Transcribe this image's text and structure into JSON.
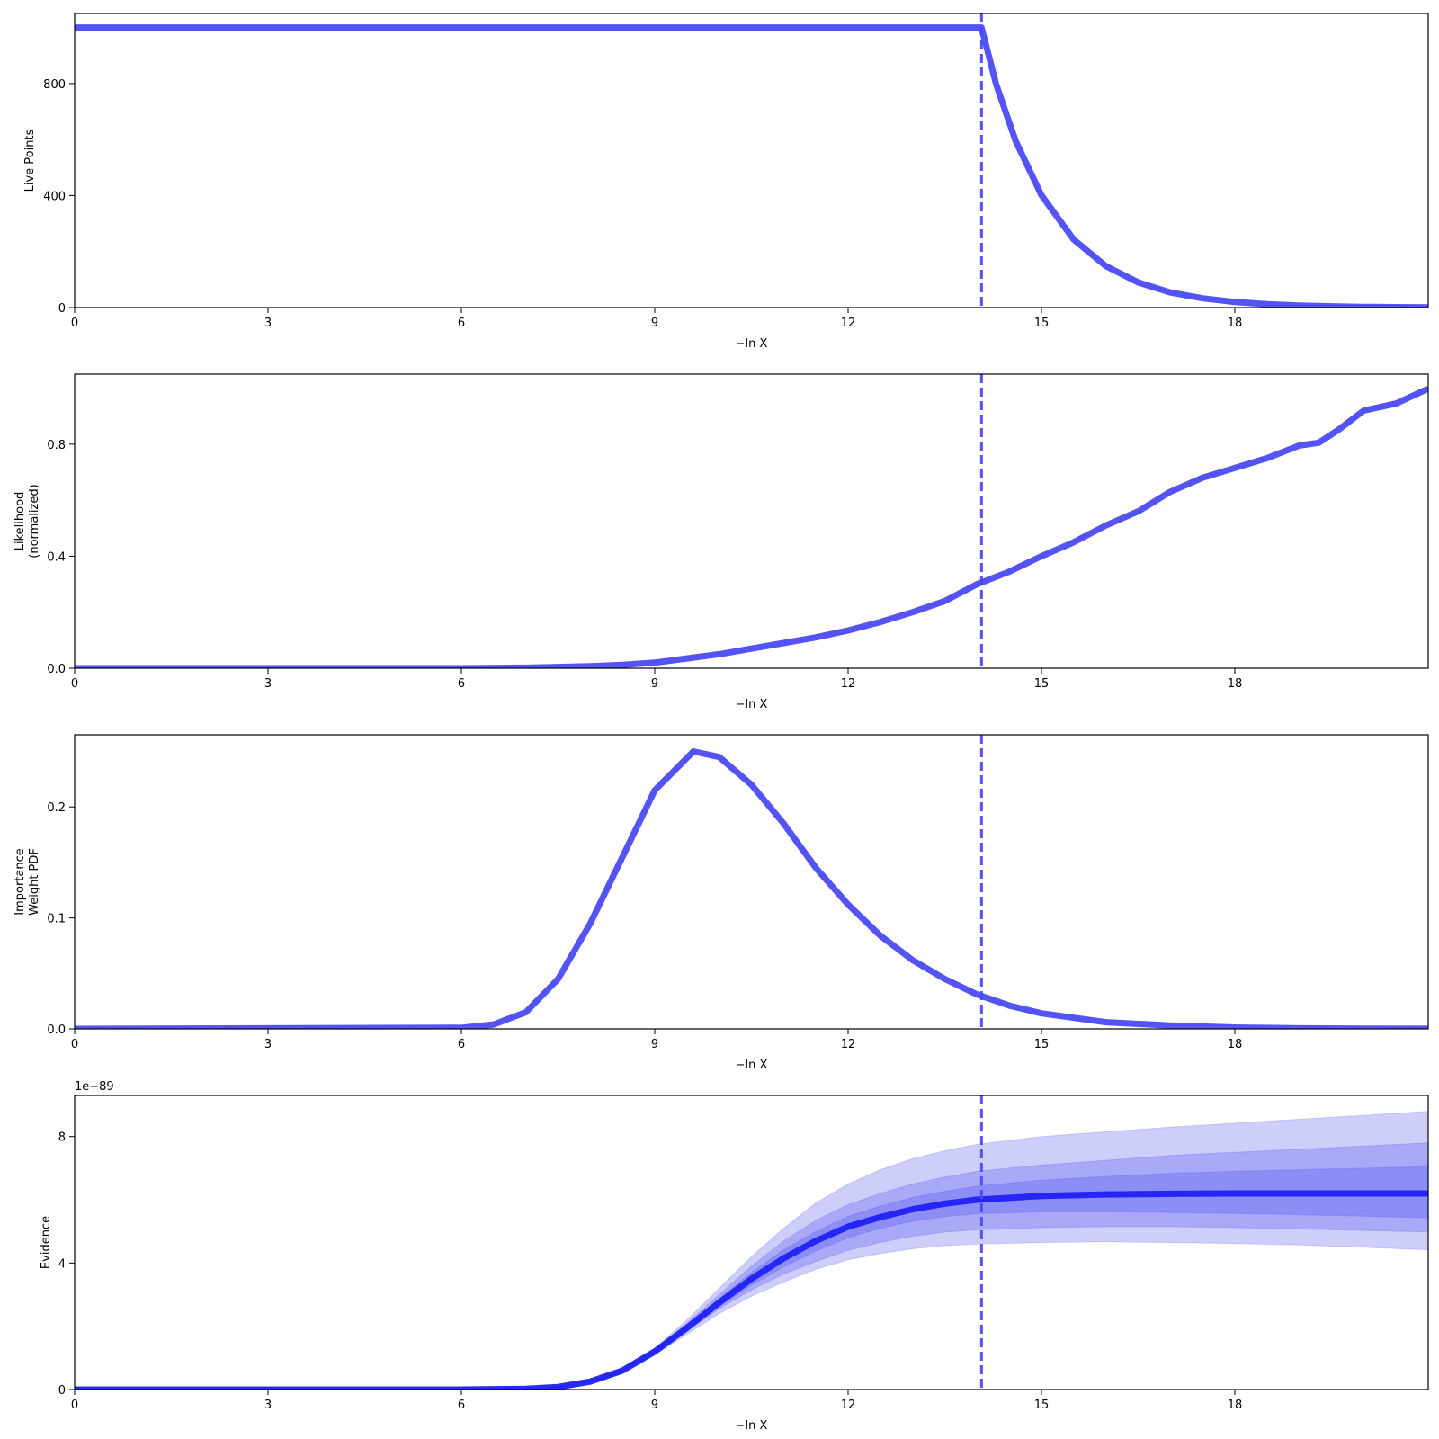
{
  "colors": {
    "line": "#4B4BF5",
    "evidence_line": "#2020F5",
    "band": "#3C3CF0"
  },
  "chart_data": [
    {
      "type": "line",
      "name": "live-points-panel",
      "xlabel": "−ln X",
      "ylabel": [
        "Live Points"
      ],
      "xlim": [
        0,
        21
      ],
      "ylim": [
        0,
        1050
      ],
      "xticks": [
        0,
        3,
        6,
        9,
        12,
        15,
        18
      ],
      "yticks": [
        0,
        400,
        800
      ],
      "vline": 14.07,
      "series": [
        {
          "x": [
            0,
            14.07,
            14.3,
            14.6,
            15.0,
            15.5,
            16.0,
            16.5,
            17.0,
            17.5,
            18.0,
            18.5,
            19.0,
            19.5,
            20.0,
            20.5,
            21.0
          ],
          "y": [
            1000,
            1000,
            795,
            595,
            401,
            243,
            148,
            90,
            54,
            33,
            20,
            12,
            7.4,
            4.5,
            2.7,
            1.6,
            1
          ]
        }
      ]
    },
    {
      "type": "line",
      "name": "likelihood-panel",
      "xlabel": "−ln X",
      "ylabel": [
        "Likelihood",
        "(normalized)"
      ],
      "xlim": [
        0,
        21
      ],
      "ylim": [
        0,
        1.05
      ],
      "xticks": [
        0,
        3,
        6,
        9,
        12,
        15,
        18
      ],
      "yticks": [
        0,
        0.4,
        0.8
      ],
      "ytick_labels": [
        "0.0",
        "0.4",
        "0.8"
      ],
      "vline": 14.07,
      "series": [
        {
          "x": [
            0,
            6,
            7,
            8,
            8.5,
            9,
            9.5,
            10,
            10.5,
            11,
            11.5,
            12,
            12.5,
            13,
            13.5,
            14,
            14.5,
            15,
            15.5,
            16,
            16.5,
            17,
            17.5,
            18,
            18.5,
            19,
            19.3,
            19.6,
            20,
            20.5,
            21
          ],
          "y": [
            0,
            0,
            0.002,
            0.007,
            0.012,
            0.02,
            0.035,
            0.05,
            0.07,
            0.09,
            0.11,
            0.135,
            0.165,
            0.2,
            0.24,
            0.3,
            0.345,
            0.4,
            0.45,
            0.51,
            0.56,
            0.63,
            0.68,
            0.715,
            0.75,
            0.795,
            0.805,
            0.85,
            0.92,
            0.945,
            0.998
          ]
        }
      ]
    },
    {
      "type": "line",
      "name": "importance-weight-panel",
      "xlabel": "−ln X",
      "ylabel": [
        "Importance",
        "Weight PDF"
      ],
      "xlim": [
        0,
        21
      ],
      "ylim": [
        0,
        0.265
      ],
      "xticks": [
        0,
        3,
        6,
        9,
        12,
        15,
        18
      ],
      "yticks": [
        0,
        0.1,
        0.2
      ],
      "ytick_labels": [
        "0.0",
        "0.1",
        "0.2"
      ],
      "vline": 14.07,
      "series": [
        {
          "x": [
            0,
            6,
            6.5,
            7,
            7.5,
            8,
            8.5,
            9,
            9.6,
            10,
            10.5,
            11,
            11.5,
            12,
            12.5,
            13,
            13.5,
            14,
            14.5,
            15,
            16,
            17,
            18,
            19,
            20,
            21
          ],
          "y": [
            0,
            0.001,
            0.004,
            0.015,
            0.045,
            0.095,
            0.155,
            0.215,
            0.25,
            0.245,
            0.22,
            0.185,
            0.145,
            0.112,
            0.084,
            0.062,
            0.045,
            0.031,
            0.021,
            0.014,
            0.006,
            0.003,
            0.0012,
            0.0005,
            0.0002,
            0.0001
          ]
        }
      ]
    },
    {
      "type": "line",
      "name": "evidence-panel",
      "xlabel": "−ln X",
      "ylabel": [
        "Evidence"
      ],
      "offset_label": "1e−89",
      "xlim": [
        0,
        21
      ],
      "ylim": [
        0,
        9.3
      ],
      "xticks": [
        0,
        3,
        6,
        9,
        12,
        15,
        18
      ],
      "yticks": [
        0,
        4,
        8
      ],
      "vline": 14.07,
      "series": [
        {
          "x": [
            0,
            6,
            7,
            7.5,
            8,
            8.5,
            9,
            9.5,
            10,
            10.5,
            11,
            11.5,
            12,
            12.5,
            13,
            13.5,
            14,
            15,
            16,
            17,
            18,
            19,
            20,
            21
          ],
          "y": [
            0,
            0,
            0.02,
            0.08,
            0.25,
            0.6,
            1.2,
            1.95,
            2.75,
            3.5,
            4.15,
            4.7,
            5.15,
            5.45,
            5.7,
            5.88,
            6.0,
            6.12,
            6.17,
            6.19,
            6.2,
            6.2,
            6.2,
            6.2
          ]
        }
      ],
      "bands": [
        {
          "sigma": 3,
          "upper": [
            0,
            0,
            0.02,
            0.09,
            0.28,
            0.66,
            1.3,
            2.2,
            3.2,
            4.2,
            5.1,
            5.9,
            6.5,
            6.95,
            7.3,
            7.55,
            7.75,
            8.0,
            8.15,
            8.3,
            8.42,
            8.55,
            8.67,
            8.8
          ],
          "lower": [
            0,
            0,
            0.02,
            0.07,
            0.23,
            0.55,
            1.1,
            1.75,
            2.4,
            2.95,
            3.4,
            3.8,
            4.1,
            4.3,
            4.45,
            4.55,
            4.6,
            4.65,
            4.67,
            4.65,
            4.62,
            4.57,
            4.5,
            4.42
          ]
        },
        {
          "sigma": 2,
          "upper": [
            0,
            0,
            0.02,
            0.085,
            0.27,
            0.64,
            1.26,
            2.1,
            3.0,
            3.9,
            4.7,
            5.35,
            5.85,
            6.2,
            6.5,
            6.72,
            6.9,
            7.1,
            7.25,
            7.4,
            7.5,
            7.6,
            7.7,
            7.8
          ],
          "lower": [
            0,
            0,
            0.02,
            0.075,
            0.24,
            0.57,
            1.14,
            1.85,
            2.55,
            3.15,
            3.65,
            4.05,
            4.4,
            4.65,
            4.85,
            4.98,
            5.05,
            5.12,
            5.15,
            5.15,
            5.12,
            5.08,
            5.03,
            4.98
          ]
        },
        {
          "sigma": 1,
          "upper": [
            0,
            0,
            0.02,
            0.082,
            0.26,
            0.62,
            1.23,
            2.02,
            2.88,
            3.7,
            4.42,
            5.0,
            5.48,
            5.8,
            6.07,
            6.27,
            6.43,
            6.62,
            6.74,
            6.83,
            6.9,
            6.95,
            7.0,
            7.05
          ],
          "lower": [
            0,
            0,
            0.02,
            0.078,
            0.245,
            0.58,
            1.17,
            1.88,
            2.62,
            3.3,
            3.88,
            4.38,
            4.8,
            5.1,
            5.32,
            5.47,
            5.56,
            5.62,
            5.62,
            5.6,
            5.57,
            5.53,
            5.48,
            5.43
          ]
        }
      ]
    }
  ]
}
